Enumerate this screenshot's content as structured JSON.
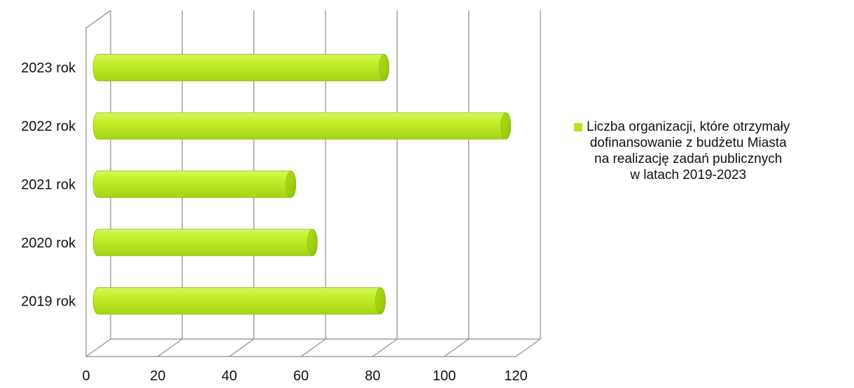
{
  "chart_data": {
    "type": "bar",
    "orientation": "horizontal",
    "style": "3d-cylinder",
    "categories": [
      "2019 rok",
      "2020 rok",
      "2021 rok",
      "2022 rok",
      "2023 rok"
    ],
    "series": [
      {
        "name": "Liczba organizacji, które otrzymały dofinansowanie z budżetu Miasta na realizację zadań publicznych w latach 2019-2023",
        "values": [
          82,
          63,
          57,
          117,
          83
        ],
        "color": "#b5e61d"
      }
    ],
    "xlim": [
      0,
      120
    ],
    "xticks": [
      "0",
      "20",
      "40",
      "60",
      "80",
      "100",
      "120"
    ],
    "grid": true,
    "legend_position": "right"
  },
  "legend": {
    "label": "Liczba organizacji, które otrzymały\ndofinansowanie z budżetu Miasta\nna realizację zadań publicznych\nw latach 2019-2023",
    "color": "#b5e61d"
  }
}
